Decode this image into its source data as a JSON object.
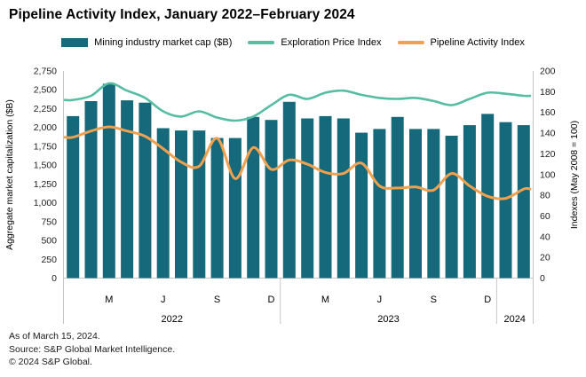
{
  "title": "Pipeline Activity Index, January 2022–February 2024",
  "legend": [
    {
      "label": "Mining industry market cap ($B)",
      "type": "bar",
      "color": "#16697A"
    },
    {
      "label": "Exploration Price Index",
      "type": "line",
      "color": "#57BDA2"
    },
    {
      "label": "Pipeline Activity Index",
      "type": "line",
      "color": "#F0A14F"
    }
  ],
  "chart_data": {
    "type": "bar",
    "x_months": [
      "Jan 2022",
      "Feb 2022",
      "Mar 2022",
      "Apr 2022",
      "May 2022",
      "Jun 2022",
      "Jul 2022",
      "Aug 2022",
      "Sep 2022",
      "Oct 2022",
      "Nov 2022",
      "Dec 2022",
      "Jan 2023",
      "Feb 2023",
      "Mar 2023",
      "Apr 2023",
      "May 2023",
      "Jun 2023",
      "Jul 2023",
      "Aug 2023",
      "Sep 2023",
      "Oct 2023",
      "Nov 2023",
      "Dec 2023",
      "Jan 2024",
      "Feb 2024"
    ],
    "month_ticks": [
      {
        "index": 2,
        "label": "M"
      },
      {
        "index": 5,
        "label": "J"
      },
      {
        "index": 8,
        "label": "S"
      },
      {
        "index": 11,
        "label": "D"
      },
      {
        "index": 14,
        "label": "M"
      },
      {
        "index": 17,
        "label": "J"
      },
      {
        "index": 20,
        "label": "S"
      },
      {
        "index": 23,
        "label": "D"
      }
    ],
    "year_groups": [
      {
        "label": "2022",
        "start": 0,
        "end": 11
      },
      {
        "label": "2023",
        "start": 12,
        "end": 23
      },
      {
        "label": "2024",
        "start": 24,
        "end": 25
      }
    ],
    "series": [
      {
        "name": "Mining industry market cap ($B)",
        "type": "bar",
        "axis": "left",
        "color": "#16697A",
        "values": [
          2150,
          2350,
          2580,
          2360,
          2330,
          1990,
          1960,
          1960,
          1860,
          1860,
          2140,
          2100,
          2340,
          2120,
          2150,
          2120,
          1930,
          1980,
          2140,
          1980,
          1980,
          1890,
          2030,
          2180,
          2070,
          2030
        ]
      },
      {
        "name": "Exploration Price Index",
        "type": "line",
        "axis": "right",
        "color": "#57BDA2",
        "values": [
          172,
          176,
          188,
          181,
          174,
          161,
          156,
          161,
          155,
          152,
          156,
          167,
          177,
          173,
          179,
          181,
          177,
          174,
          173,
          174,
          171,
          167,
          173,
          179,
          178,
          176
        ]
      },
      {
        "name": "Pipeline Activity Index",
        "type": "line",
        "axis": "right",
        "color": "#F0A14F",
        "values": [
          136,
          142,
          146,
          142,
          137,
          125,
          112,
          108,
          135,
          96,
          126,
          105,
          114,
          110,
          102,
          101,
          111,
          89,
          87,
          88,
          85,
          101,
          89,
          79,
          77,
          86
        ]
      }
    ],
    "left_axis": {
      "title": "Aggregate market capitalization ($B)",
      "min": 0,
      "max": 2750,
      "step": 250,
      "tick_labels": [
        "0",
        "250",
        "500",
        "750",
        "1,000",
        "1,250",
        "1,500",
        "1,750",
        "2,000",
        "2,250",
        "2,500",
        "2,750"
      ]
    },
    "right_axis": {
      "title": "Indexes (May 2008 = 100)",
      "min": 0,
      "max": 200,
      "step": 20,
      "tick_labels": [
        "0",
        "20",
        "40",
        "60",
        "80",
        "100",
        "120",
        "140",
        "160",
        "180",
        "200"
      ]
    },
    "grid": "off",
    "legend_position": "top"
  },
  "footer": {
    "line1": "As of March 15, 2024.",
    "line2": "Source: S&P Global Market Intelligence.",
    "line3": "© 2024 S&P Global."
  }
}
